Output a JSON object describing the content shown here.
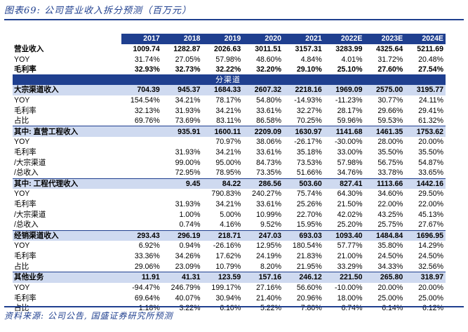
{
  "caption": "图表69: 公司营业收入拆分预测（百万元）",
  "source": "资料来源: 公司公告, 国盛证券研究所预测",
  "colors": {
    "accent": "#1f3f8f",
    "section_bg": "#cfdaf0"
  },
  "table": {
    "years": [
      "2017",
      "2018",
      "2019",
      "2020",
      "2021",
      "2022E",
      "2023E",
      "2024E"
    ],
    "band_label": "分渠道",
    "rows": [
      {
        "label": "营业收入",
        "style": "bold",
        "values": [
          "1009.74",
          "1282.87",
          "2026.63",
          "3011.51",
          "3157.31",
          "3283.99",
          "4325.64",
          "5211.69"
        ]
      },
      {
        "label": "YOY",
        "style": "",
        "values": [
          "31.74%",
          "27.05%",
          "57.98%",
          "48.60%",
          "4.84%",
          "4.01%",
          "31.72%",
          "20.48%"
        ]
      },
      {
        "label": "毛利率",
        "style": "bold",
        "values": [
          "32.93%",
          "32.73%",
          "32.22%",
          "32.20%",
          "29.10%",
          "25.10%",
          "27.60%",
          "27.54%"
        ]
      },
      {
        "label": "BAND",
        "style": "band",
        "values": []
      },
      {
        "label": "大宗渠道收入",
        "style": "sec",
        "values": [
          "704.39",
          "945.37",
          "1684.33",
          "2607.32",
          "2218.16",
          "1969.09",
          "2575.00",
          "3195.77"
        ]
      },
      {
        "label": "YOY",
        "style": "",
        "values": [
          "154.54%",
          "34.21%",
          "78.17%",
          "54.80%",
          "-14.93%",
          "-11.23%",
          "30.77%",
          "24.11%"
        ]
      },
      {
        "label": "毛利率",
        "style": "",
        "values": [
          "32.13%",
          "31.93%",
          "34.21%",
          "33.61%",
          "32.27%",
          "28.17%",
          "29.66%",
          "29.41%"
        ]
      },
      {
        "label": "占比",
        "style": "",
        "values": [
          "69.76%",
          "73.69%",
          "83.11%",
          "86.58%",
          "70.25%",
          "59.96%",
          "59.53%",
          "61.32%"
        ]
      },
      {
        "label": "其中: 直营工程收入",
        "style": "sec",
        "values": [
          "",
          "935.91",
          "1600.11",
          "2209.09",
          "1630.97",
          "1141.68",
          "1461.35",
          "1753.62"
        ]
      },
      {
        "label": "YOY",
        "style": "",
        "values": [
          "",
          "",
          "70.97%",
          "38.06%",
          "-26.17%",
          "-30.00%",
          "28.00%",
          "20.00%"
        ]
      },
      {
        "label": "毛利率",
        "style": "",
        "values": [
          "",
          "31.93%",
          "34.21%",
          "33.61%",
          "35.18%",
          "33.00%",
          "35.50%",
          "35.50%"
        ]
      },
      {
        "label": "/大宗渠道",
        "style": "",
        "values": [
          "",
          "99.00%",
          "95.00%",
          "84.73%",
          "73.53%",
          "57.98%",
          "56.75%",
          "54.87%"
        ]
      },
      {
        "label": "/总收入",
        "style": "",
        "values": [
          "",
          "72.95%",
          "78.95%",
          "73.35%",
          "51.66%",
          "34.76%",
          "33.78%",
          "33.65%"
        ]
      },
      {
        "label": "其中: 工程代理收入",
        "style": "sec",
        "values": [
          "",
          "9.45",
          "84.22",
          "286.56",
          "503.60",
          "827.41",
          "1113.66",
          "1442.16"
        ]
      },
      {
        "label": "YOY",
        "style": "",
        "values": [
          "",
          "",
          "790.83%",
          "240.27%",
          "75.74%",
          "64.30%",
          "34.60%",
          "29.50%"
        ]
      },
      {
        "label": "毛利率",
        "style": "",
        "values": [
          "",
          "31.93%",
          "34.21%",
          "33.61%",
          "25.26%",
          "21.50%",
          "22.00%",
          "22.00%"
        ]
      },
      {
        "label": "/大宗渠道",
        "style": "",
        "values": [
          "",
          "1.00%",
          "5.00%",
          "10.99%",
          "22.70%",
          "42.02%",
          "43.25%",
          "45.13%"
        ]
      },
      {
        "label": "/总收入",
        "style": "",
        "values": [
          "",
          "0.74%",
          "4.16%",
          "9.52%",
          "15.95%",
          "25.20%",
          "25.75%",
          "27.67%"
        ]
      },
      {
        "label": "经销渠道收入",
        "style": "sec",
        "values": [
          "293.43",
          "296.19",
          "218.71",
          "247.03",
          "693.03",
          "1093.40",
          "1484.84",
          "1696.95"
        ]
      },
      {
        "label": "YOY",
        "style": "",
        "values": [
          "6.92%",
          "0.94%",
          "-26.16%",
          "12.95%",
          "180.54%",
          "57.77%",
          "35.80%",
          "14.29%"
        ]
      },
      {
        "label": "毛利率",
        "style": "",
        "values": [
          "33.36%",
          "34.26%",
          "17.62%",
          "24.19%",
          "21.83%",
          "21.00%",
          "24.50%",
          "24.50%"
        ]
      },
      {
        "label": "占比",
        "style": "",
        "values": [
          "29.06%",
          "23.09%",
          "10.79%",
          "8.20%",
          "21.95%",
          "33.29%",
          "34.33%",
          "32.56%"
        ]
      },
      {
        "label": "其他业务",
        "style": "sec",
        "values": [
          "11.91",
          "41.31",
          "123.59",
          "157.16",
          "246.12",
          "221.50",
          "265.80",
          "318.97"
        ]
      },
      {
        "label": "YOY",
        "style": "",
        "values": [
          "-94.47%",
          "246.79%",
          "199.17%",
          "27.16%",
          "56.60%",
          "-10.00%",
          "20.00%",
          "20.00%"
        ]
      },
      {
        "label": "毛利率",
        "style": "",
        "values": [
          "69.64%",
          "40.07%",
          "30.94%",
          "21.40%",
          "20.96%",
          "18.00%",
          "25.00%",
          "25.00%"
        ]
      },
      {
        "label": "占比",
        "style": "",
        "values": [
          "1.18%",
          "3.22%",
          "6.10%",
          "5.22%",
          "7.80%",
          "6.74%",
          "6.14%",
          "6.12%"
        ]
      }
    ]
  }
}
